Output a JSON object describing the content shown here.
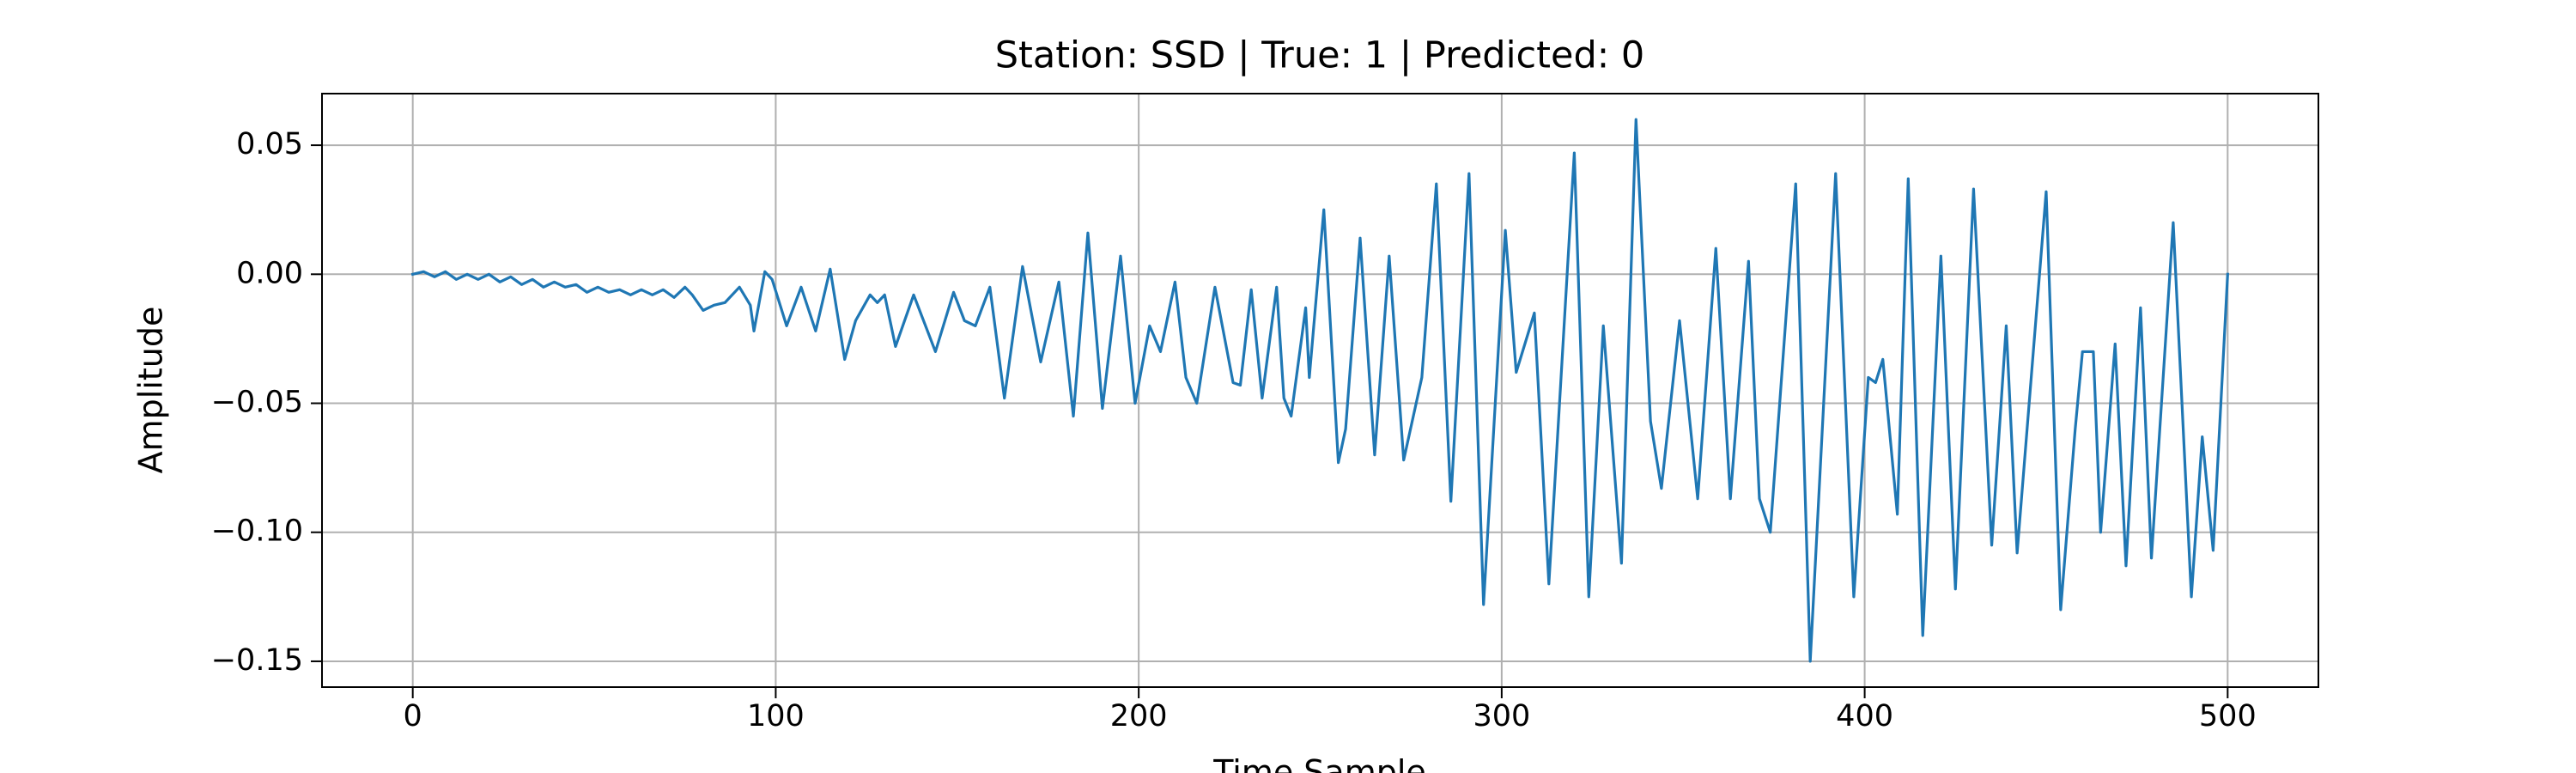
{
  "chart_data": {
    "type": "line",
    "title": "Station: SSD | True: 1 | Predicted: 0",
    "x_label": "Time Sample",
    "y_label": "Amplitude",
    "x": [
      0,
      3,
      6,
      9,
      12,
      15,
      18,
      21,
      24,
      27,
      30,
      33,
      36,
      39,
      42,
      45,
      48,
      51,
      54,
      57,
      60,
      63,
      66,
      69,
      72,
      75,
      77,
      80,
      83,
      86,
      90,
      93,
      94,
      97,
      99,
      103,
      107,
      111,
      115,
      119,
      122,
      126,
      128,
      130,
      133,
      138,
      144,
      149,
      152,
      155,
      159,
      163,
      168,
      173,
      178,
      182,
      186,
      190,
      195,
      199,
      203,
      206,
      210,
      213,
      216,
      221,
      226,
      228,
      231,
      234,
      238,
      240,
      242,
      246,
      247,
      251,
      255,
      257,
      261,
      265,
      269,
      273,
      278,
      282,
      286,
      291,
      295,
      301,
      304,
      309,
      313,
      320,
      324,
      328,
      333,
      337,
      341,
      344,
      349,
      354,
      359,
      363,
      368,
      371,
      374,
      381,
      385,
      392,
      397,
      401,
      403,
      405,
      409,
      412,
      416,
      421,
      425,
      430,
      435,
      439,
      442,
      450,
      454,
      458,
      460,
      463,
      465,
      469,
      472,
      476,
      479,
      485,
      490,
      493,
      496,
      500
    ],
    "series": [
      {
        "name": "Amplitude",
        "color": "#1f77b4",
        "values": [
          0,
          0.001,
          -0.001,
          0.001,
          -0.002,
          0.0,
          -0.002,
          0.0,
          -0.003,
          -0.001,
          -0.004,
          -0.002,
          -0.005,
          -0.003,
          -0.005,
          -0.004,
          -0.007,
          -0.005,
          -0.007,
          -0.006,
          -0.008,
          -0.006,
          -0.008,
          -0.006,
          -0.009,
          -0.005,
          -0.008,
          -0.014,
          -0.012,
          -0.011,
          -0.005,
          -0.012,
          -0.022,
          0.001,
          -0.002,
          -0.02,
          -0.005,
          -0.022,
          0.002,
          -0.033,
          -0.018,
          -0.008,
          -0.011,
          -0.008,
          -0.028,
          -0.008,
          -0.03,
          -0.007,
          -0.018,
          -0.02,
          -0.005,
          -0.048,
          0.003,
          -0.034,
          -0.003,
          -0.055,
          0.016,
          -0.052,
          0.007,
          -0.05,
          -0.02,
          -0.03,
          -0.003,
          -0.04,
          -0.05,
          -0.005,
          -0.042,
          -0.043,
          -0.006,
          -0.048,
          -0.005,
          -0.048,
          -0.055,
          -0.013,
          -0.04,
          0.025,
          -0.073,
          -0.06,
          0.014,
          -0.07,
          0.007,
          -0.072,
          -0.04,
          0.035,
          -0.088,
          0.039,
          -0.128,
          0.017,
          -0.038,
          -0.015,
          -0.12,
          0.047,
          -0.125,
          -0.02,
          -0.112,
          0.06,
          -0.057,
          -0.083,
          -0.018,
          -0.087,
          0.01,
          -0.087,
          0.005,
          -0.087,
          -0.1,
          0.035,
          -0.15,
          0.039,
          -0.125,
          -0.04,
          -0.042,
          -0.033,
          -0.093,
          0.037,
          -0.14,
          0.007,
          -0.122,
          0.033,
          -0.105,
          -0.02,
          -0.108,
          0.032,
          -0.13,
          -0.06,
          -0.03,
          -0.03,
          -0.1,
          -0.027,
          -0.113,
          -0.013,
          -0.11,
          0.02,
          -0.125,
          -0.063,
          -0.107,
          0.0
        ]
      }
    ],
    "xlim": [
      -25,
      525
    ],
    "ylim": [
      -0.16,
      0.07
    ],
    "xticks": [
      0,
      100,
      200,
      300,
      400,
      500
    ],
    "yticks": [
      {
        "value": 0.05,
        "label": "0.05"
      },
      {
        "value": 0,
        "label": "0.00"
      },
      {
        "value": -0.05,
        "label": "−0.05"
      },
      {
        "value": -0.1,
        "label": "−0.10"
      },
      {
        "value": -0.15,
        "label": "−0.15"
      }
    ],
    "grid": true
  }
}
